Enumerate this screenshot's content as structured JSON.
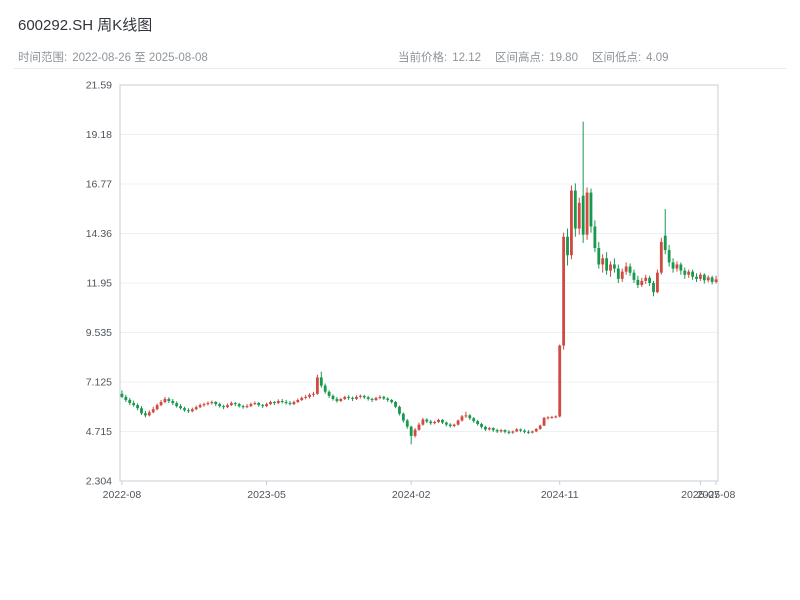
{
  "header": {
    "title": "600292.SH 周K线图",
    "date_range": {
      "label": "时间范围:",
      "value": "2022-08-26 至 2025-08-08"
    },
    "stats": [
      {
        "label": "当前价格:",
        "value": "12.12"
      },
      {
        "label": "区间高点:",
        "value": "19.80"
      },
      {
        "label": "区间低点:",
        "value": "4.09"
      }
    ]
  },
  "chart_data": {
    "type": "candlestick",
    "title": "600292.SH 周K线图",
    "xlabel": "",
    "ylabel": "",
    "grid": "horizontal",
    "up_color": "#cf4a42",
    "down_color": "#17994f",
    "axis_color": "#c9ced6",
    "grid_color": "#edf0f4",
    "ylim": [
      2.304,
      21.59
    ],
    "y_ticks": [
      "2.304",
      "4.715",
      "7.125",
      "9.535",
      "11.95",
      "14.36",
      "16.77",
      "19.18",
      "21.59"
    ],
    "x_ticks": [
      {
        "label": "2022-08",
        "index": 0
      },
      {
        "label": "2023-05",
        "index": 37
      },
      {
        "label": "2024-02",
        "index": 74
      },
      {
        "label": "2024-11",
        "index": 112
      },
      {
        "label": "2025-07",
        "index": 148
      },
      {
        "label": "2025-08",
        "index": 152
      }
    ],
    "candles": [
      [
        6.55,
        6.72,
        6.35,
        6.4
      ],
      [
        6.4,
        6.5,
        6.15,
        6.25
      ],
      [
        6.25,
        6.35,
        6.0,
        6.1
      ],
      [
        6.1,
        6.22,
        5.92,
        6.0
      ],
      [
        6.0,
        6.08,
        5.75,
        5.85
      ],
      [
        5.85,
        5.95,
        5.52,
        5.6
      ],
      [
        5.6,
        5.72,
        5.4,
        5.5
      ],
      [
        5.5,
        5.75,
        5.45,
        5.65
      ],
      [
        5.65,
        5.92,
        5.6,
        5.8
      ],
      [
        5.8,
        6.08,
        5.75,
        6.0
      ],
      [
        6.0,
        6.25,
        5.95,
        6.15
      ],
      [
        6.15,
        6.4,
        6.08,
        6.3
      ],
      [
        6.3,
        6.38,
        6.1,
        6.2
      ],
      [
        6.2,
        6.3,
        6.0,
        6.1
      ],
      [
        6.1,
        6.18,
        5.88,
        5.95
      ],
      [
        5.95,
        6.05,
        5.78,
        5.85
      ],
      [
        5.85,
        5.92,
        5.68,
        5.75
      ],
      [
        5.75,
        5.85,
        5.62,
        5.7
      ],
      [
        5.7,
        5.88,
        5.65,
        5.8
      ],
      [
        5.8,
        5.98,
        5.75,
        5.9
      ],
      [
        5.9,
        6.08,
        5.85,
        6.0
      ],
      [
        6.0,
        6.12,
        5.92,
        6.05
      ],
      [
        6.05,
        6.18,
        5.98,
        6.1
      ],
      [
        6.1,
        6.22,
        6.02,
        6.15
      ],
      [
        6.15,
        6.2,
        5.95,
        6.05
      ],
      [
        6.05,
        6.12,
        5.88,
        5.95
      ],
      [
        5.95,
        6.02,
        5.8,
        5.9
      ],
      [
        5.9,
        6.08,
        5.85,
        6.0
      ],
      [
        6.0,
        6.18,
        5.95,
        6.1
      ],
      [
        6.1,
        6.15,
        5.95,
        6.05
      ],
      [
        6.05,
        6.1,
        5.88,
        5.95
      ],
      [
        5.95,
        6.02,
        5.82,
        5.9
      ],
      [
        5.9,
        6.05,
        5.85,
        5.95
      ],
      [
        5.95,
        6.12,
        5.9,
        6.05
      ],
      [
        6.05,
        6.18,
        6.0,
        6.1
      ],
      [
        6.1,
        6.15,
        5.92,
        6.0
      ],
      [
        6.0,
        6.06,
        5.86,
        5.95
      ],
      [
        5.95,
        6.12,
        5.9,
        6.05
      ],
      [
        6.05,
        6.22,
        6.0,
        6.15
      ],
      [
        6.15,
        6.2,
        6.0,
        6.1
      ],
      [
        6.1,
        6.28,
        6.05,
        6.2
      ],
      [
        6.2,
        6.3,
        6.08,
        6.15
      ],
      [
        6.15,
        6.25,
        6.02,
        6.1
      ],
      [
        6.1,
        6.2,
        5.98,
        6.05
      ],
      [
        6.05,
        6.22,
        6.0,
        6.15
      ],
      [
        6.15,
        6.32,
        6.1,
        6.25
      ],
      [
        6.25,
        6.42,
        6.2,
        6.35
      ],
      [
        6.35,
        6.5,
        6.28,
        6.4
      ],
      [
        6.4,
        6.58,
        6.32,
        6.5
      ],
      [
        6.5,
        6.65,
        6.4,
        6.55
      ],
      [
        6.55,
        7.48,
        6.5,
        7.35
      ],
      [
        7.35,
        7.63,
        6.85,
        6.95
      ],
      [
        6.95,
        7.05,
        6.55,
        6.65
      ],
      [
        6.65,
        6.72,
        6.35,
        6.45
      ],
      [
        6.45,
        6.52,
        6.22,
        6.3
      ],
      [
        6.3,
        6.4,
        6.12,
        6.2
      ],
      [
        6.2,
        6.35,
        6.15,
        6.3
      ],
      [
        6.3,
        6.45,
        6.25,
        6.4
      ],
      [
        6.4,
        6.48,
        6.25,
        6.35
      ],
      [
        6.35,
        6.42,
        6.2,
        6.3
      ],
      [
        6.3,
        6.48,
        6.25,
        6.4
      ],
      [
        6.4,
        6.52,
        6.32,
        6.45
      ],
      [
        6.45,
        6.5,
        6.3,
        6.38
      ],
      [
        6.38,
        6.45,
        6.22,
        6.3
      ],
      [
        6.3,
        6.36,
        6.15,
        6.25
      ],
      [
        6.25,
        6.4,
        6.2,
        6.35
      ],
      [
        6.35,
        6.48,
        6.28,
        6.4
      ],
      [
        6.4,
        6.46,
        6.25,
        6.32
      ],
      [
        6.32,
        6.38,
        6.15,
        6.25
      ],
      [
        6.25,
        6.3,
        6.08,
        6.15
      ],
      [
        6.15,
        6.2,
        5.85,
        5.92
      ],
      [
        5.92,
        5.98,
        5.5,
        5.58
      ],
      [
        5.58,
        5.64,
        5.15,
        5.25
      ],
      [
        5.25,
        5.32,
        4.85,
        4.95
      ],
      [
        4.95,
        5.0,
        4.09,
        4.5
      ],
      [
        4.5,
        4.88,
        4.42,
        4.8
      ],
      [
        4.8,
        5.15,
        4.75,
        5.05
      ],
      [
        5.05,
        5.38,
        5.0,
        5.3
      ],
      [
        5.3,
        5.36,
        5.12,
        5.2
      ],
      [
        5.2,
        5.28,
        5.04,
        5.12
      ],
      [
        5.12,
        5.24,
        5.06,
        5.18
      ],
      [
        5.18,
        5.34,
        5.12,
        5.28
      ],
      [
        5.28,
        5.32,
        5.08,
        5.15
      ],
      [
        5.15,
        5.2,
        4.96,
        5.05
      ],
      [
        5.05,
        5.12,
        4.9,
        4.98
      ],
      [
        4.98,
        5.1,
        4.92,
        5.05
      ],
      [
        5.05,
        5.3,
        5.0,
        5.25
      ],
      [
        5.25,
        5.52,
        5.2,
        5.45
      ],
      [
        5.45,
        5.68,
        5.38,
        5.5
      ],
      [
        5.5,
        5.56,
        5.28,
        5.36
      ],
      [
        5.36,
        5.42,
        5.14,
        5.22
      ],
      [
        5.22,
        5.28,
        5.0,
        5.08
      ],
      [
        5.08,
        5.14,
        4.86,
        4.94
      ],
      [
        4.94,
        5.0,
        4.74,
        4.82
      ],
      [
        4.82,
        4.94,
        4.76,
        4.88
      ],
      [
        4.88,
        4.92,
        4.7,
        4.78
      ],
      [
        4.78,
        4.85,
        4.64,
        4.72
      ],
      [
        4.72,
        4.84,
        4.66,
        4.78
      ],
      [
        4.78,
        4.82,
        4.62,
        4.7
      ],
      [
        4.7,
        4.78,
        4.58,
        4.66
      ],
      [
        4.66,
        4.76,
        4.6,
        4.72
      ],
      [
        4.72,
        4.88,
        4.68,
        4.82
      ],
      [
        4.82,
        4.86,
        4.68,
        4.76
      ],
      [
        4.76,
        4.82,
        4.62,
        4.7
      ],
      [
        4.7,
        4.78,
        4.6,
        4.66
      ],
      [
        4.66,
        4.76,
        4.62,
        4.72
      ],
      [
        4.72,
        4.88,
        4.68,
        4.84
      ],
      [
        4.84,
        5.05,
        4.8,
        5.0
      ],
      [
        5.0,
        5.42,
        4.98,
        5.38
      ],
      [
        5.38,
        5.46,
        5.3,
        5.4
      ],
      [
        5.4,
        5.48,
        5.34,
        5.42
      ],
      [
        5.42,
        5.5,
        5.36,
        5.45
      ],
      [
        5.45,
        8.95,
        5.4,
        8.9
      ],
      [
        8.9,
        14.4,
        8.7,
        14.2
      ],
      [
        14.2,
        14.6,
        12.8,
        13.3
      ],
      [
        13.3,
        16.7,
        13.1,
        16.45
      ],
      [
        16.45,
        16.8,
        14.2,
        14.6
      ],
      [
        14.6,
        16.1,
        14.3,
        15.85
      ],
      [
        16.2,
        19.8,
        13.9,
        14.3
      ],
      [
        14.3,
        16.6,
        14.05,
        16.35
      ],
      [
        16.35,
        16.55,
        14.4,
        14.7
      ],
      [
        14.7,
        15.0,
        13.45,
        13.65
      ],
      [
        13.65,
        13.95,
        12.65,
        12.85
      ],
      [
        12.85,
        13.35,
        12.45,
        13.15
      ],
      [
        13.15,
        13.45,
        12.35,
        12.55
      ],
      [
        12.55,
        13.0,
        12.25,
        12.85
      ],
      [
        12.85,
        13.15,
        12.45,
        12.65
      ],
      [
        12.65,
        12.85,
        11.95,
        12.15
      ],
      [
        12.15,
        12.65,
        12.0,
        12.5
      ],
      [
        12.5,
        12.95,
        12.35,
        12.75
      ],
      [
        12.75,
        12.9,
        12.3,
        12.45
      ],
      [
        12.45,
        12.6,
        11.95,
        12.1
      ],
      [
        12.1,
        12.3,
        11.7,
        11.85
      ],
      [
        11.85,
        12.2,
        11.75,
        12.05
      ],
      [
        12.05,
        12.35,
        11.9,
        12.2
      ],
      [
        12.2,
        12.3,
        11.8,
        11.95
      ],
      [
        11.95,
        12.05,
        11.3,
        11.5
      ],
      [
        11.5,
        12.6,
        11.45,
        12.45
      ],
      [
        12.45,
        14.15,
        12.35,
        13.95
      ],
      [
        14.25,
        15.55,
        13.35,
        13.55
      ],
      [
        13.55,
        13.8,
        12.75,
        12.95
      ],
      [
        12.95,
        13.15,
        12.45,
        12.65
      ],
      [
        12.65,
        13.0,
        12.5,
        12.85
      ],
      [
        12.85,
        12.95,
        12.35,
        12.55
      ],
      [
        12.55,
        12.7,
        12.15,
        12.35
      ],
      [
        12.35,
        12.6,
        12.2,
        12.5
      ],
      [
        12.5,
        12.6,
        12.1,
        12.25
      ],
      [
        12.25,
        12.42,
        12.0,
        12.15
      ],
      [
        12.15,
        12.45,
        12.05,
        12.35
      ],
      [
        12.35,
        12.42,
        11.92,
        12.08
      ],
      [
        12.08,
        12.32,
        11.98,
        12.22
      ],
      [
        12.22,
        12.3,
        11.88,
        12.0
      ],
      [
        12.0,
        12.3,
        11.92,
        12.12
      ]
    ]
  }
}
